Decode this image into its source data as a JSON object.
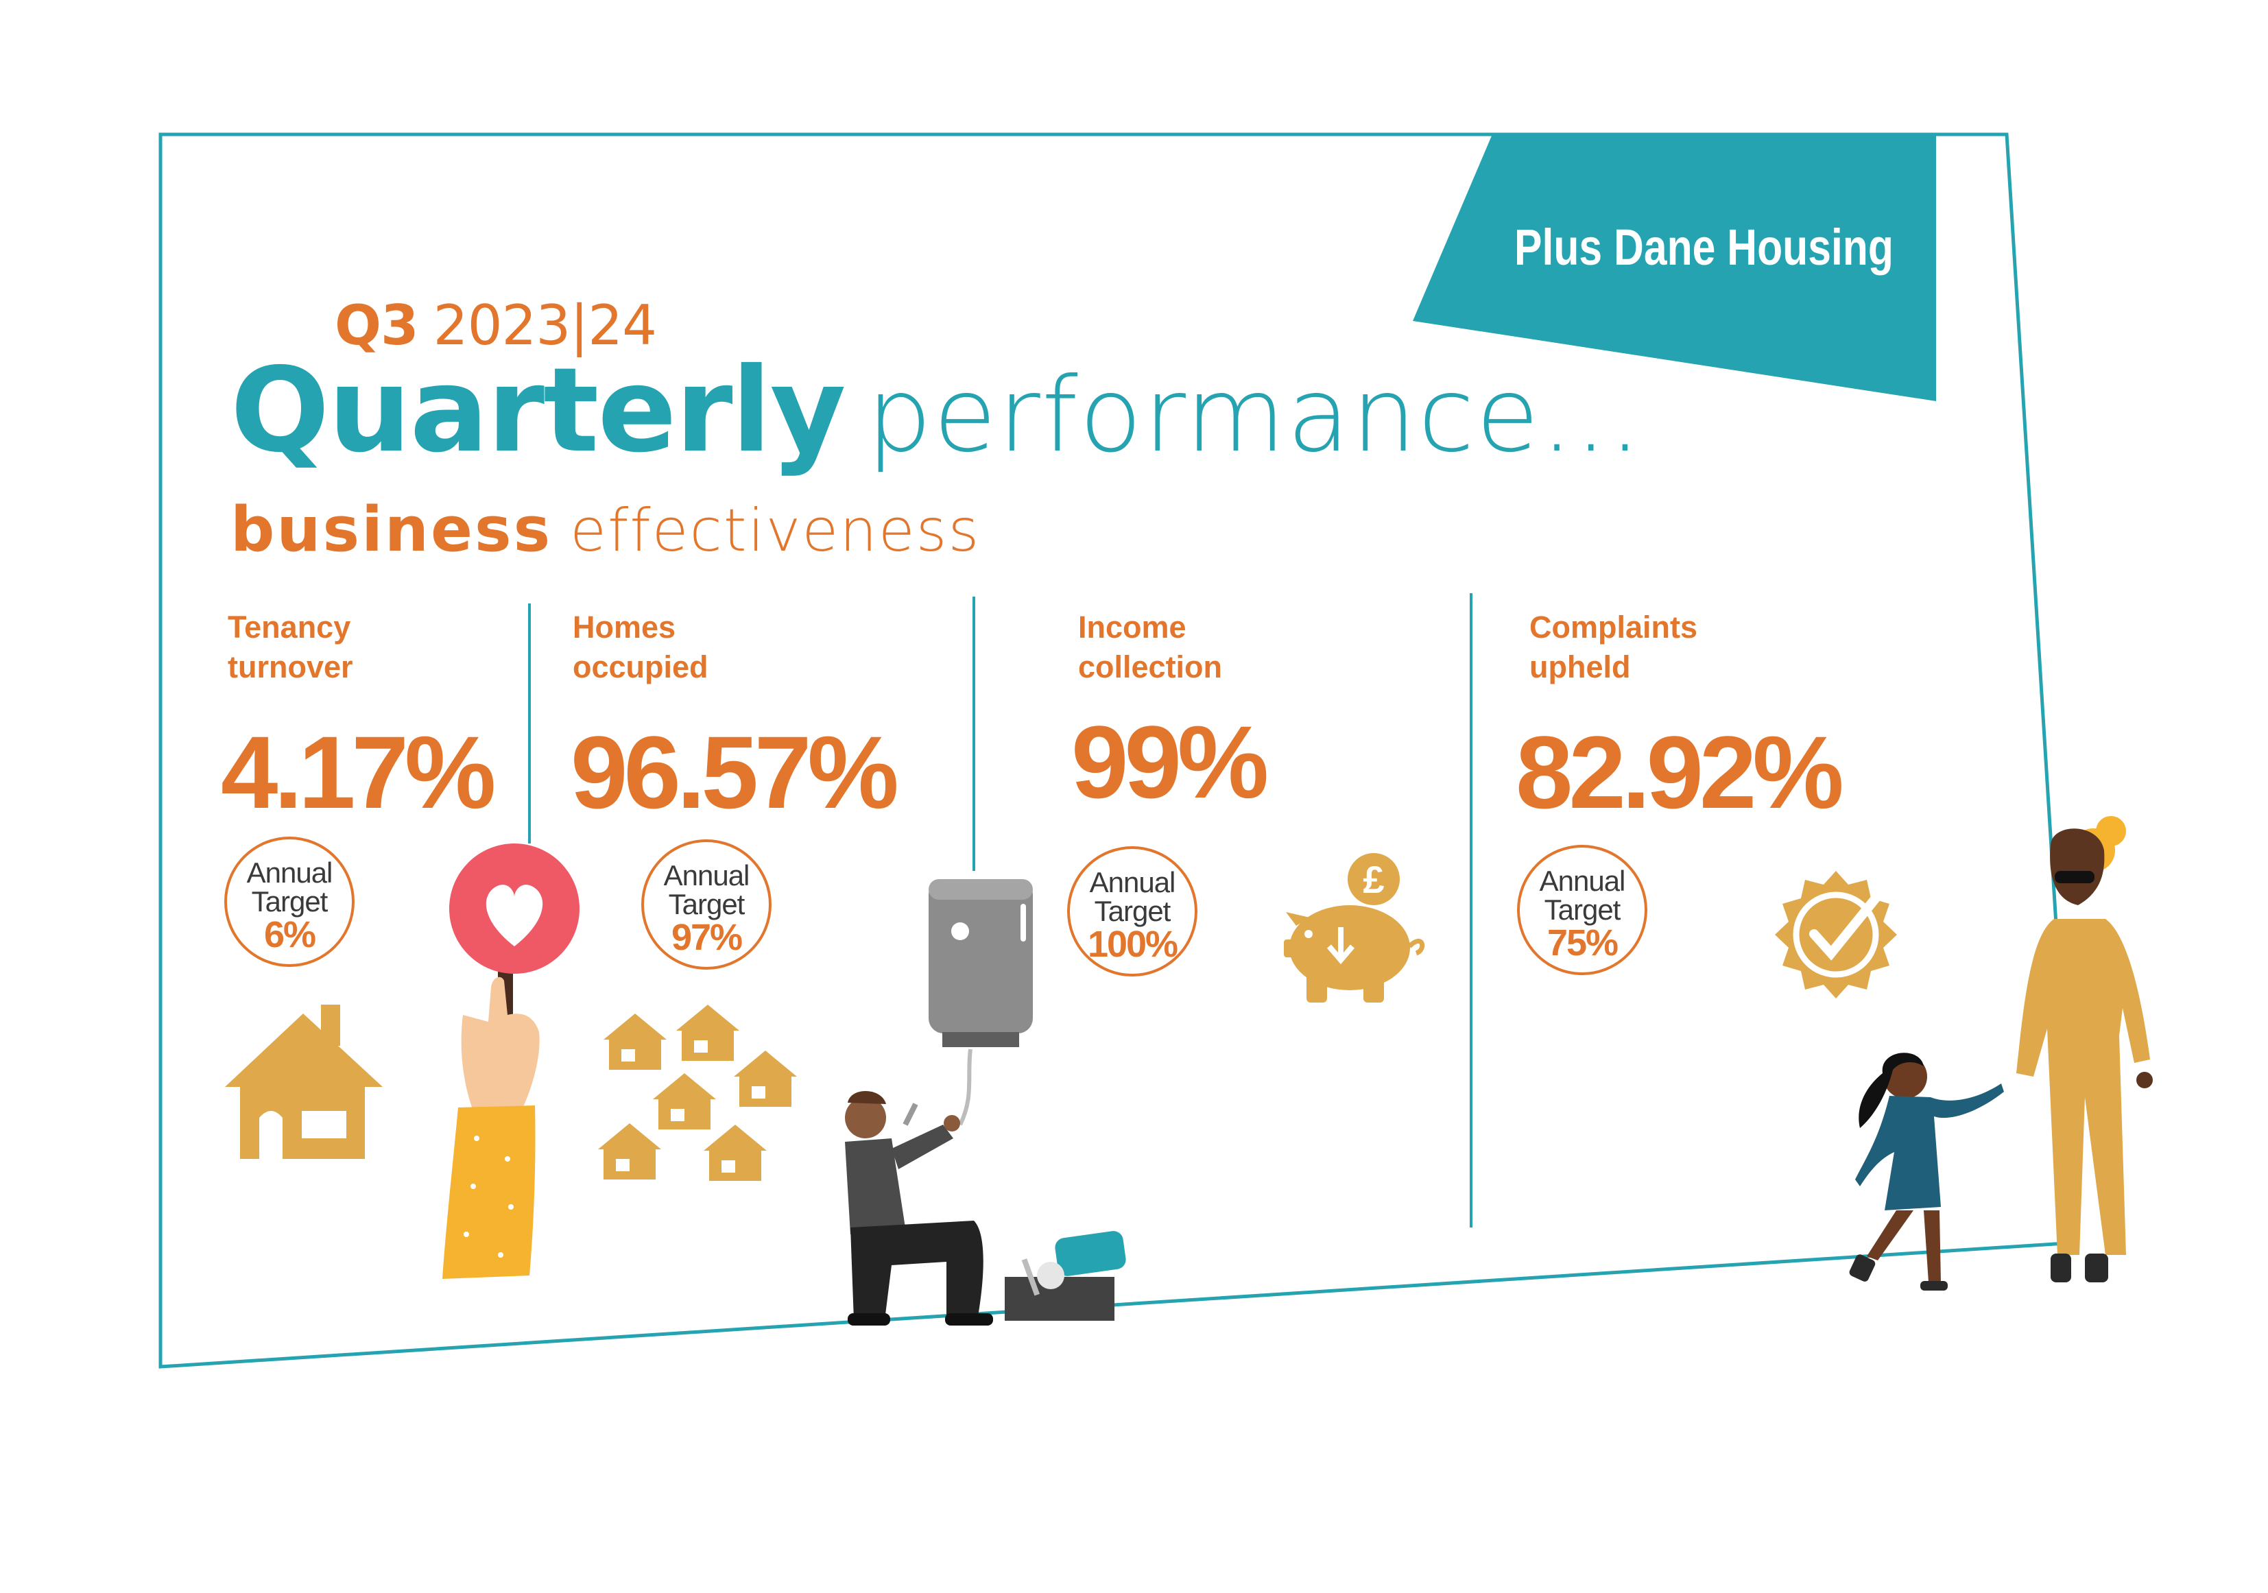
{
  "brand": {
    "name": "Plus Dane Housing"
  },
  "header": {
    "quarter": "Q3",
    "year": "2023|24",
    "title_bold": "Quarterly",
    "title_light": "performance...",
    "section_bold": "business",
    "section_light": "effectiveness"
  },
  "metrics": [
    {
      "label_line1": "Tenancy",
      "label_line2": "turnover",
      "value": "4.17%",
      "target_line1": "Annual",
      "target_line2": "Target",
      "target_value": "6%",
      "icon": "house-icon"
    },
    {
      "label_line1": "Homes",
      "label_line2": "occupied",
      "value": "96.57%",
      "target_line1": "Annual",
      "target_line2": "Target",
      "target_value": "97%",
      "icon": "houses-cluster-icon"
    },
    {
      "label_line1": "Income",
      "label_line2": "collection",
      "value": "99%",
      "target_line1": "Annual",
      "target_line2": "Target",
      "target_value": "100%",
      "icon": "piggy-bank-pound-icon"
    },
    {
      "label_line1": "Complaints",
      "label_line2": "upheld",
      "value": "82.92%",
      "target_line1": "Annual",
      "target_line2": "Target",
      "target_value": "75%",
      "icon": "check-badge-icon"
    }
  ],
  "icons": {
    "pound_symbol": "£"
  },
  "colors": {
    "teal": "#26a3b0",
    "orange": "#e2762c",
    "gold": "#dea84b",
    "red": "#ef5966"
  }
}
